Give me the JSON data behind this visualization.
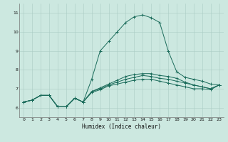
{
  "xlabel": "Humidex (Indice chaleur)",
  "bg_color": "#cce8e0",
  "grid_color": "#aaccC4",
  "line_color": "#1a6b5a",
  "xlim": [
    -0.5,
    23.5
  ],
  "ylim": [
    5.5,
    11.5
  ],
  "xticks": [
    0,
    1,
    2,
    3,
    4,
    5,
    6,
    7,
    8,
    9,
    10,
    11,
    12,
    13,
    14,
    15,
    16,
    17,
    18,
    19,
    20,
    21,
    22,
    23
  ],
  "yticks": [
    6,
    7,
    8,
    9,
    10,
    11
  ],
  "line1_y": [
    6.3,
    6.4,
    6.65,
    6.65,
    6.05,
    6.05,
    6.5,
    6.3,
    7.5,
    9.0,
    9.5,
    10.0,
    10.5,
    10.8,
    10.9,
    10.75,
    10.5,
    9.0,
    7.9,
    7.6,
    7.5,
    7.4,
    7.25,
    7.2
  ],
  "line2_y": [
    6.3,
    6.4,
    6.65,
    6.65,
    6.05,
    6.05,
    6.5,
    6.3,
    6.8,
    6.95,
    7.15,
    7.25,
    7.35,
    7.45,
    7.5,
    7.5,
    7.4,
    7.3,
    7.2,
    7.1,
    7.0,
    7.0,
    6.95,
    7.2
  ],
  "line3_y": [
    6.3,
    6.4,
    6.65,
    6.65,
    6.05,
    6.05,
    6.5,
    6.3,
    6.85,
    7.0,
    7.2,
    7.35,
    7.5,
    7.6,
    7.7,
    7.65,
    7.55,
    7.5,
    7.4,
    7.3,
    7.2,
    7.1,
    7.0,
    7.2
  ],
  "line4_y": [
    6.3,
    6.4,
    6.65,
    6.65,
    6.05,
    6.05,
    6.5,
    6.3,
    6.85,
    7.05,
    7.25,
    7.45,
    7.65,
    7.75,
    7.8,
    7.8,
    7.7,
    7.65,
    7.55,
    7.35,
    7.2,
    7.1,
    7.0,
    7.2
  ]
}
